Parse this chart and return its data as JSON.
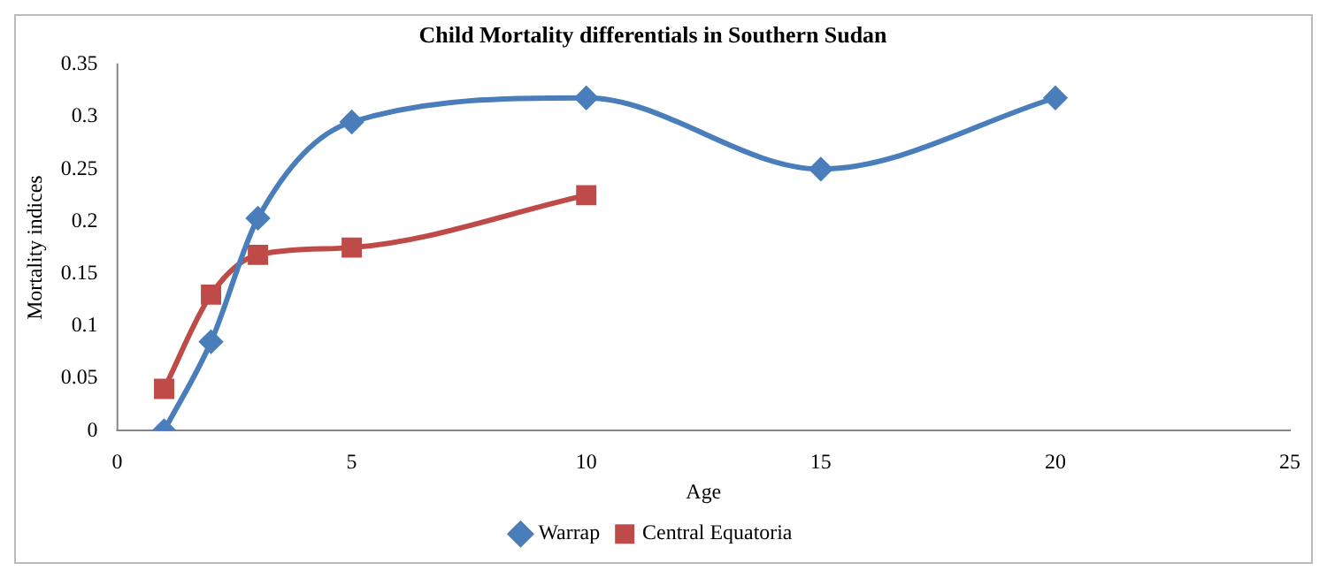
{
  "chart_data": {
    "type": "line",
    "title": "Child Mortality differentials in Southern Sudan",
    "xlabel": "Age",
    "ylabel": "Mortality indices",
    "x": [
      1,
      2,
      3,
      5,
      10,
      15,
      20
    ],
    "series": [
      {
        "name": "Warrap",
        "color": "#4a7ebb",
        "marker": "diamond",
        "values": [
          0,
          0.085,
          0.203,
          0.295,
          0.318,
          0.25,
          0.318
        ]
      },
      {
        "name": "Central Equatoria",
        "color": "#be4b48",
        "marker": "square",
        "x": [
          1,
          2,
          3,
          5,
          10
        ],
        "values": [
          0.04,
          0.13,
          0.168,
          0.175,
          0.225
        ]
      }
    ],
    "xlim": [
      0,
      25
    ],
    "xticks": [
      0,
      5,
      10,
      15,
      20,
      25
    ],
    "ylim": [
      0,
      0.35
    ],
    "yticks": [
      0,
      0.05,
      0.1,
      0.15,
      0.2,
      0.25,
      0.3,
      0.35
    ],
    "grid": false,
    "legend": "bottom",
    "line_style": "solid"
  }
}
